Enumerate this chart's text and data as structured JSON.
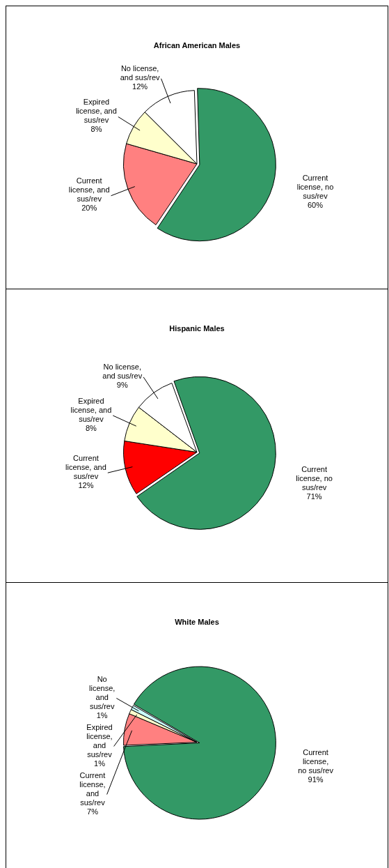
{
  "chart_data": [
    {
      "type": "pie",
      "title": "African American Males",
      "categories": [
        "Current license, no sus/rev",
        "Current license, and sus/rev",
        "Expired license, and sus/rev",
        "No license, and sus/rev"
      ],
      "values": [
        60,
        20,
        8,
        12
      ],
      "value_labels": [
        "60%",
        "20%",
        "8%",
        "12%"
      ],
      "colors": [
        "#339966",
        "#ff8080",
        "#ffffcc",
        "#ffffff"
      ],
      "legend": false
    },
    {
      "type": "pie",
      "title": "Hispanic Males",
      "categories": [
        "Current license, no sus/rev",
        "Current license, and sus/rev",
        "Expired license, and sus/rev",
        "No license, and sus/rev"
      ],
      "values": [
        71,
        12,
        8,
        9
      ],
      "value_labels": [
        "71%",
        "12%",
        "8%",
        "9%"
      ],
      "colors": [
        "#339966",
        "#ff0000",
        "#ffffcc",
        "#ffffff"
      ],
      "legend": false
    },
    {
      "type": "pie",
      "title": "White Males",
      "categories": [
        "Current license, no sus/rev",
        "Current license, and sus/rev",
        "Expired license, and sus/rev",
        "No license, and sus/rev"
      ],
      "values": [
        91,
        7,
        1,
        1
      ],
      "value_labels": [
        "91%",
        "7%",
        "1%",
        "1%"
      ],
      "colors": [
        "#339966",
        "#ff8080",
        "#ffffcc",
        "#ccffff"
      ],
      "legend": false
    }
  ]
}
